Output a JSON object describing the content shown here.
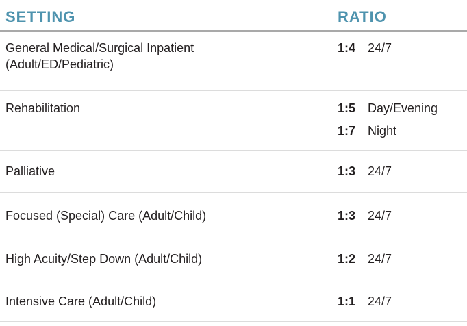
{
  "table": {
    "header": {
      "setting": "SETTING",
      "ratio": "RATIO"
    },
    "rows": [
      {
        "setting": "General Medical/Surgical Inpatient\n(Adult/ED/Pediatric)",
        "ratios": [
          {
            "value": "1:4",
            "schedule": "24/7"
          }
        ]
      },
      {
        "setting": "Rehabilitation",
        "ratios": [
          {
            "value": "1:5",
            "schedule": "Day/Evening"
          },
          {
            "value": "1:7",
            "schedule": "Night"
          }
        ]
      },
      {
        "setting": "Palliative",
        "ratios": [
          {
            "value": "1:3",
            "schedule": "24/7"
          }
        ]
      },
      {
        "setting": "Focused (Special) Care (Adult/Child)",
        "ratios": [
          {
            "value": "1:3",
            "schedule": "24/7"
          }
        ]
      },
      {
        "setting": "High Acuity/Step Down (Adult/Child)",
        "ratios": [
          {
            "value": "1:2",
            "schedule": "24/7"
          }
        ]
      },
      {
        "setting": "Intensive Care (Adult/Child)",
        "ratios": [
          {
            "value": "1:1",
            "schedule": "24/7"
          }
        ]
      }
    ]
  },
  "colors": {
    "header_text": "#4e93ae",
    "body_text": "#231f20",
    "header_divider": "#a9a9a9",
    "row_divider": "#dcdcdc",
    "background": "#ffffff"
  }
}
